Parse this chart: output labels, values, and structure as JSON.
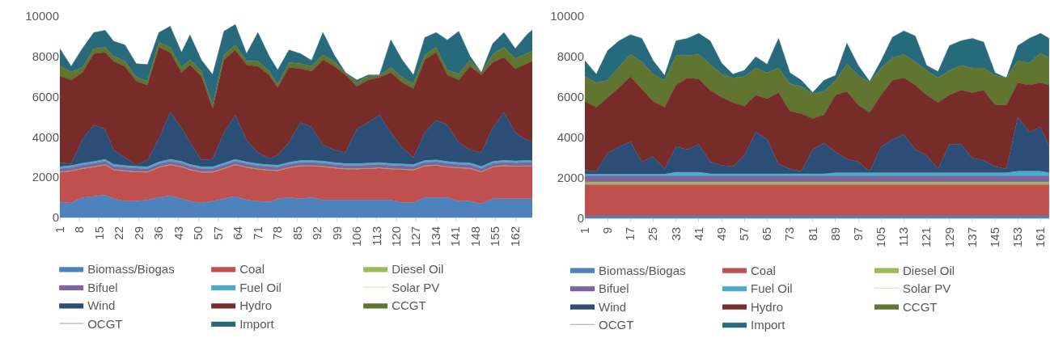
{
  "chart_data": [
    {
      "type": "area",
      "stacked": true,
      "legend": "bottom",
      "grid": false,
      "x": [
        1,
        5,
        9,
        13,
        17,
        20,
        24,
        28,
        32,
        36,
        40,
        44,
        47,
        51,
        55,
        59,
        63,
        67,
        71,
        75,
        78,
        82,
        86,
        90,
        94,
        98,
        102,
        106,
        110,
        114,
        118,
        122,
        126,
        130,
        134,
        138,
        142,
        146,
        150,
        154,
        158,
        162,
        166,
        168
      ],
      "xlim": [
        1,
        168
      ],
      "xticks": [
        1,
        8,
        15,
        22,
        29,
        36,
        43,
        50,
        57,
        64,
        71,
        78,
        85,
        92,
        99,
        106,
        113,
        120,
        127,
        134,
        141,
        148,
        155,
        162
      ],
      "ylim": [
        0,
        10000
      ],
      "yticks": [
        0,
        2000,
        4000,
        6000,
        8000,
        10000
      ],
      "series": [
        {
          "name": "Biomass/Biogas",
          "color": "#4f81bd",
          "values": [
            770,
            720,
            990,
            1050,
            1120,
            930,
            810,
            810,
            870,
            990,
            1080,
            930,
            810,
            720,
            810,
            930,
            1050,
            870,
            810,
            770,
            930,
            990,
            930,
            990,
            870,
            870,
            870,
            870,
            870,
            870,
            870,
            745,
            745,
            990,
            990,
            990,
            810,
            810,
            680,
            930,
            930,
            930,
            930,
            930
          ]
        },
        {
          "name": "Coal",
          "color": "#c0504d",
          "values": [
            1470,
            1580,
            1430,
            1455,
            1490,
            1430,
            1490,
            1450,
            1370,
            1490,
            1530,
            1580,
            1550,
            1520,
            1430,
            1490,
            1560,
            1610,
            1580,
            1570,
            1390,
            1470,
            1620,
            1560,
            1650,
            1580,
            1530,
            1530,
            1550,
            1580,
            1530,
            1635,
            1605,
            1560,
            1590,
            1510,
            1640,
            1620,
            1570,
            1570,
            1630,
            1600,
            1620,
            1610
          ]
        },
        {
          "name": "Diesel Oil",
          "color": "#9bbb59",
          "values": [
            20,
            20,
            20,
            20,
            20,
            20,
            20,
            20,
            20,
            20,
            20,
            20,
            20,
            20,
            20,
            20,
            20,
            20,
            20,
            20,
            20,
            20,
            20,
            20,
            20,
            20,
            20,
            20,
            20,
            20,
            20,
            20,
            20,
            20,
            20,
            20,
            20,
            20,
            20,
            20,
            20,
            20,
            20,
            20
          ]
        },
        {
          "name": "Bifuel",
          "color": "#8064a2",
          "values": [
            170,
            170,
            170,
            170,
            170,
            170,
            170,
            170,
            170,
            170,
            170,
            170,
            170,
            170,
            170,
            170,
            170,
            170,
            170,
            170,
            170,
            170,
            170,
            170,
            170,
            170,
            170,
            170,
            170,
            170,
            170,
            170,
            170,
            170,
            170,
            170,
            170,
            170,
            170,
            170,
            170,
            170,
            170,
            170
          ]
        },
        {
          "name": "Fuel Oil",
          "color": "#4bacc6",
          "values": [
            90,
            90,
            90,
            90,
            90,
            90,
            90,
            90,
            90,
            90,
            90,
            90,
            90,
            90,
            90,
            90,
            90,
            90,
            90,
            90,
            90,
            90,
            90,
            90,
            90,
            90,
            90,
            90,
            90,
            90,
            90,
            90,
            90,
            90,
            90,
            90,
            90,
            90,
            90,
            90,
            90,
            90,
            90,
            90
          ]
        },
        {
          "name": "Solar PV",
          "color": "#f79646",
          "values": [
            null,
            null,
            null,
            null,
            null,
            null,
            null,
            null,
            null,
            null,
            null,
            null,
            null,
            null,
            null,
            null,
            null,
            null,
            null,
            null,
            null,
            null,
            null,
            null,
            null,
            null,
            null,
            null,
            null,
            null,
            null,
            null,
            null,
            null,
            null,
            null,
            null,
            null,
            null,
            null,
            null,
            null,
            null,
            null
          ]
        },
        {
          "name": "Wind",
          "color": "#2c4d75",
          "values": [
            210,
            90,
            1200,
            1810,
            1510,
            710,
            400,
            70,
            340,
            1150,
            2330,
            1680,
            1090,
            340,
            380,
            1520,
            2200,
            1090,
            560,
            300,
            500,
            990,
            1890,
            1670,
            800,
            620,
            550,
            1730,
            2020,
            2360,
            1540,
            820,
            350,
            1390,
            1980,
            1820,
            1000,
            640,
            700,
            1690,
            2380,
            1410,
            1020,
            970
          ]
        },
        {
          "name": "Hydro",
          "color": "#772c2a",
          "values": [
            4290,
            4160,
            3300,
            3540,
            3800,
            4410,
            4535,
            4160,
            3720,
            4540,
            2980,
            2730,
            3850,
            4160,
            2500,
            3610,
            3230,
            3730,
            4285,
            4160,
            3360,
            3720,
            2670,
            2770,
            4230,
            4165,
            3850,
            2110,
            2110,
            1870,
            2980,
            3230,
            3420,
            3610,
            3360,
            2480,
            3100,
            4165,
            3850,
            3230,
            2730,
            3170,
            3790,
            3970
          ]
        },
        {
          "name": "CCGT",
          "color": "#5f7530",
          "values": [
            500,
            400,
            250,
            250,
            250,
            250,
            250,
            200,
            200,
            250,
            250,
            250,
            250,
            250,
            200,
            250,
            250,
            200,
            250,
            200,
            150,
            250,
            250,
            250,
            250,
            250,
            100,
            200,
            200,
            100,
            250,
            250,
            250,
            250,
            250,
            250,
            300,
            300,
            100,
            400,
            500,
            500,
            500,
            500
          ]
        },
        {
          "name": "OCGT",
          "color": "#4d3b62",
          "values": [
            null,
            null,
            null,
            null,
            null,
            null,
            null,
            null,
            null,
            null,
            null,
            null,
            null,
            null,
            null,
            null,
            null,
            null,
            null,
            null,
            null,
            null,
            null,
            null,
            null,
            null,
            null,
            null,
            null,
            null,
            null,
            null,
            null,
            null,
            null,
            null,
            null,
            null,
            null,
            null,
            null,
            null,
            null,
            null
          ]
        },
        {
          "name": "Import",
          "color": "#276a7c",
          "values": [
            865,
            285,
            950,
            800,
            850,
            750,
            805,
            670,
            820,
            490,
            1050,
            750,
            1240,
            560,
            1500,
            1170,
            1020,
            360,
            1425,
            730,
            720,
            620,
            500,
            280,
            1110,
            305,
            20,
            110,
            50,
            20,
            1370,
            870,
            430,
            860,
            740,
            1490,
            2120,
            195,
            20,
            530,
            740,
            495,
            930,
            1060
          ]
        }
      ]
    },
    {
      "type": "area",
      "stacked": true,
      "legend": "bottom",
      "grid": false,
      "x": [
        1,
        5,
        9,
        13,
        17,
        21,
        25,
        29,
        33,
        37,
        41,
        45,
        49,
        53,
        57,
        61,
        65,
        69,
        73,
        77,
        81,
        85,
        89,
        93,
        97,
        101,
        105,
        109,
        113,
        117,
        121,
        125,
        129,
        133,
        137,
        141,
        145,
        149,
        153,
        157,
        161,
        164
      ],
      "xlim": [
        1,
        164.3
      ],
      "xticks": [
        1,
        9,
        17,
        25,
        33,
        41,
        49,
        57,
        65,
        73,
        81,
        89,
        97,
        105,
        113,
        121,
        129,
        137,
        145,
        153,
        161
      ],
      "ylim": [
        0,
        10000
      ],
      "yticks": [
        0,
        2000,
        4000,
        6000,
        8000,
        10000
      ],
      "series": [
        {
          "name": "Biomass/Biogas",
          "color": "#4f81bd",
          "values": [
            120,
            120,
            120,
            120,
            120,
            120,
            120,
            120,
            120,
            120,
            120,
            120,
            120,
            120,
            120,
            120,
            120,
            120,
            120,
            120,
            120,
            120,
            120,
            120,
            120,
            120,
            120,
            120,
            120,
            120,
            120,
            120,
            120,
            120,
            120,
            120,
            120,
            120,
            120,
            120,
            120,
            120
          ]
        },
        {
          "name": "Coal",
          "color": "#c0504d",
          "values": [
            1550,
            1550,
            1550,
            1550,
            1550,
            1550,
            1550,
            1550,
            1550,
            1550,
            1550,
            1550,
            1550,
            1550,
            1550,
            1550,
            1550,
            1550,
            1550,
            1550,
            1550,
            1550,
            1550,
            1550,
            1550,
            1550,
            1550,
            1550,
            1550,
            1550,
            1550,
            1550,
            1550,
            1550,
            1550,
            1550,
            1550,
            1550,
            1550,
            1550,
            1550,
            1550
          ]
        },
        {
          "name": "Diesel Oil",
          "color": "#9bbb59",
          "values": [
            130,
            130,
            130,
            130,
            130,
            130,
            130,
            130,
            130,
            130,
            130,
            130,
            130,
            130,
            130,
            130,
            130,
            130,
            130,
            130,
            130,
            130,
            130,
            130,
            130,
            130,
            130,
            130,
            130,
            130,
            130,
            130,
            130,
            130,
            130,
            130,
            130,
            130,
            130,
            130,
            130,
            130
          ]
        },
        {
          "name": "Bifuel",
          "color": "#8064a2",
          "values": [
            280,
            280,
            280,
            280,
            280,
            280,
            280,
            280,
            280,
            280,
            280,
            280,
            280,
            280,
            280,
            280,
            280,
            280,
            280,
            280,
            280,
            280,
            280,
            280,
            280,
            280,
            280,
            280,
            280,
            280,
            280,
            280,
            280,
            280,
            280,
            280,
            280,
            280,
            280,
            280,
            280,
            280
          ]
        },
        {
          "name": "Fuel Oil",
          "color": "#4bacc6",
          "values": [
            100,
            100,
            100,
            100,
            100,
            100,
            100,
            100,
            200,
            200,
            200,
            120,
            120,
            120,
            120,
            120,
            120,
            120,
            120,
            120,
            120,
            120,
            170,
            170,
            170,
            170,
            170,
            170,
            170,
            170,
            170,
            170,
            170,
            170,
            170,
            170,
            170,
            170,
            250,
            250,
            250,
            170
          ]
        },
        {
          "name": "Solar PV",
          "color": "#f79646",
          "values": [
            null,
            null,
            null,
            null,
            null,
            null,
            null,
            null,
            null,
            null,
            null,
            null,
            null,
            null,
            null,
            null,
            null,
            null,
            null,
            null,
            null,
            null,
            null,
            null,
            null,
            null,
            null,
            null,
            null,
            null,
            null,
            null,
            null,
            null,
            null,
            null,
            null,
            null,
            null,
            null,
            null,
            null
          ]
        },
        {
          "name": "Wind",
          "color": "#2c4d75",
          "values": [
            200,
            140,
            1050,
            1360,
            1600,
            620,
            870,
            260,
            1260,
            1130,
            1380,
            600,
            420,
            360,
            910,
            2070,
            1700,
            480,
            240,
            120,
            1210,
            1520,
            1040,
            680,
            550,
            70,
            1290,
            1650,
            1900,
            1160,
            860,
            190,
            1410,
            1410,
            740,
            620,
            310,
            190,
            2670,
            1940,
            2180,
            1290
          ]
        },
        {
          "name": "Hydro",
          "color": "#772c2a",
          "values": [
            3410,
            3170,
            2750,
            2920,
            3230,
            3600,
            2740,
            3050,
            3050,
            3540,
            3230,
            3540,
            3360,
            3170,
            2440,
            1830,
            2020,
            3540,
            2860,
            2860,
            1530,
            1400,
            2810,
            3350,
            2810,
            2920,
            2560,
            2930,
            2800,
            3180,
            2990,
            3290,
            2440,
            2680,
            3230,
            3470,
            3050,
            3170,
            1710,
            2320,
            2200,
            3050
          ]
        },
        {
          "name": "CCGT",
          "color": "#5f7530",
          "values": [
            1220,
            1220,
            850,
            1040,
            1100,
            1340,
            1340,
            1340,
            1460,
            1100,
            1220,
            1280,
            1150,
            1220,
            1460,
            1340,
            1280,
            1220,
            1350,
            1340,
            1220,
            1160,
            730,
            1340,
            1460,
            1470,
            1340,
            1100,
            1160,
            1150,
            1220,
            1220,
            1220,
            1220,
            1220,
            1100,
            1460,
            1340,
            1090,
            1090,
            1460,
            1340
          ]
        },
        {
          "name": "OCGT",
          "color": "#4d3b62",
          "values": [
            null,
            null,
            null,
            null,
            null,
            null,
            null,
            null,
            null,
            null,
            null,
            null,
            null,
            null,
            null,
            null,
            null,
            null,
            null,
            null,
            null,
            null,
            null,
            null,
            null,
            null,
            null,
            null,
            null,
            null,
            null,
            null,
            null,
            null,
            null,
            null,
            null,
            null,
            null,
            null,
            null,
            null
          ]
        },
        {
          "name": "Import",
          "color": "#276a7c",
          "values": [
            790,
            420,
            1470,
            1280,
            975,
            1160,
            670,
            240,
            730,
            850,
            1040,
            1160,
            550,
            180,
            310,
            550,
            420,
            1460,
            550,
            310,
            60,
            550,
            240,
            1040,
            490,
            60,
            360,
            1030,
            1160,
            1280,
            240,
            310,
            1220,
            1220,
            1460,
            1280,
            130,
            0,
            740,
            1220,
            980,
            970
          ]
        }
      ]
    }
  ]
}
